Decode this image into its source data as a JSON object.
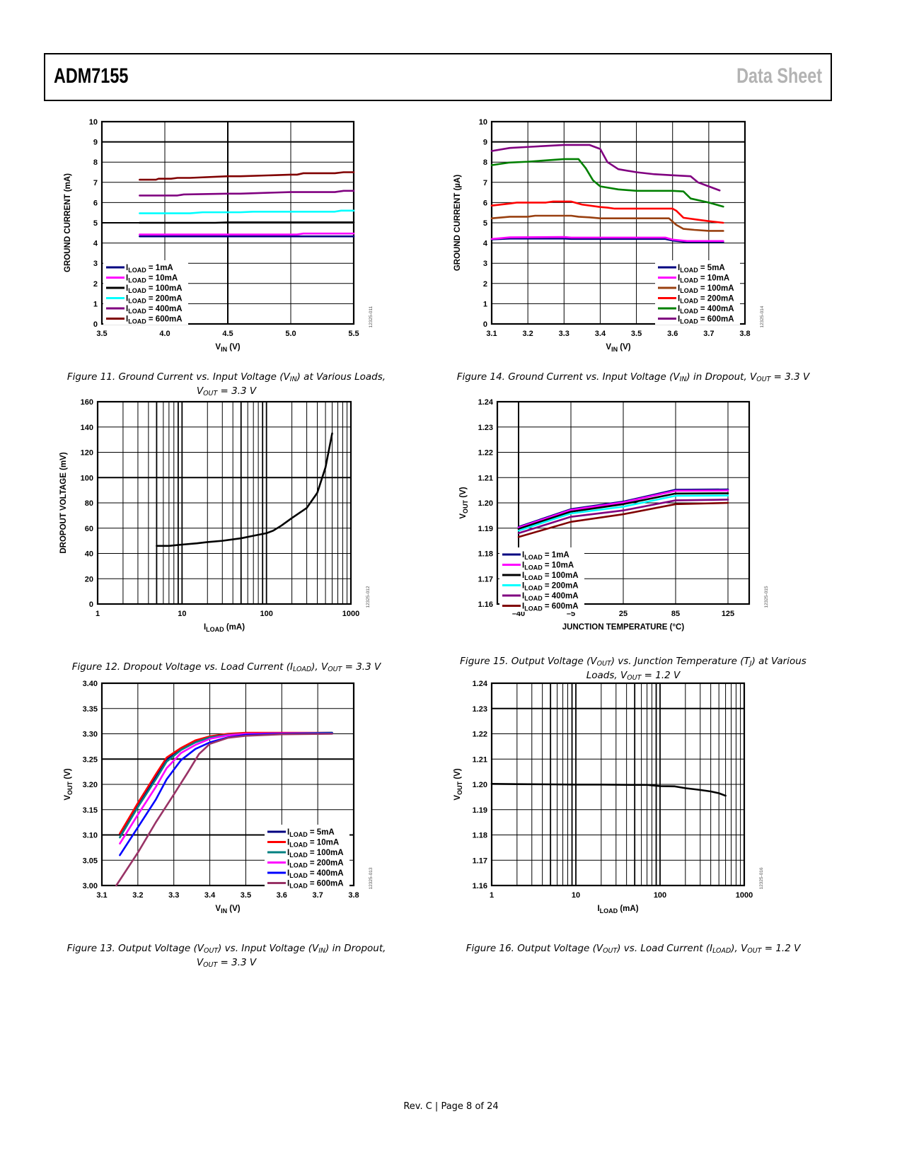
{
  "header": {
    "part_number": "ADM7155",
    "doc_type": "Data Sheet"
  },
  "footer": {
    "text": "Rev. C | Page 8 of 24"
  },
  "chart_data": [
    {
      "id": "fig11",
      "type": "line",
      "xscale": "linear",
      "caption_line1": "Figure 11. Ground Current vs. Input Voltage (V",
      "caption_sub1": "IN",
      "caption_mid1": ") at Various Loads,",
      "caption_line2": "V",
      "caption_sub2": "OUT",
      "caption_end2": " = 3.3 V",
      "xlabel": "V",
      "xlabel_sub": "IN",
      "xlabel_end": " (V)",
      "ylabel": "GROUND CURRENT (mA)",
      "xlim": [
        3.5,
        5.5
      ],
      "ylim": [
        0,
        10
      ],
      "xticks": [
        "3.5",
        "4.0",
        "4.5",
        "5.0",
        "5.5"
      ],
      "yticks": [
        "0",
        "1",
        "2",
        "3",
        "4",
        "5",
        "6",
        "7",
        "8",
        "9",
        "10"
      ],
      "code": "12325-011",
      "legend_position": "bottom-left",
      "series": [
        {
          "name": "I",
          "sub": "LOAD",
          "label": " = 1mA",
          "color": "#000080",
          "x": [
            3.8,
            5.5
          ],
          "y": [
            4.33,
            4.33
          ]
        },
        {
          "name": "I",
          "sub": "LOAD",
          "label": " = 10mA",
          "color": "#ff00ff",
          "x": [
            3.8,
            4.5,
            5.05,
            5.1,
            5.5
          ],
          "y": [
            4.42,
            4.42,
            4.42,
            4.47,
            4.47
          ]
        },
        {
          "name": "I",
          "sub": "LOAD",
          "label": " = 100mA",
          "color": "#000000",
          "x": [
            3.8,
            4.4,
            4.5,
            5.5
          ],
          "y": [
            5.0,
            5.0,
            5.02,
            5.02
          ]
        },
        {
          "name": "I",
          "sub": "LOAD",
          "label": " = 200mA",
          "color": "#00ffff",
          "x": [
            3.8,
            4.2,
            4.3,
            4.6,
            4.7,
            5.35,
            5.4,
            5.5
          ],
          "y": [
            5.47,
            5.47,
            5.52,
            5.52,
            5.55,
            5.55,
            5.6,
            5.6
          ]
        },
        {
          "name": "I",
          "sub": "LOAD",
          "label": " = 400mA",
          "color": "#800080",
          "x": [
            3.8,
            4.1,
            4.15,
            4.5,
            4.6,
            5.0,
            5.35,
            5.42,
            5.5
          ],
          "y": [
            6.35,
            6.35,
            6.4,
            6.44,
            6.44,
            6.52,
            6.52,
            6.58,
            6.58
          ]
        },
        {
          "name": "I",
          "sub": "LOAD",
          "label": " = 600mA",
          "color": "#800000",
          "x": [
            3.8,
            3.93,
            3.95,
            4.05,
            4.1,
            4.2,
            4.5,
            4.6,
            5.0,
            5.05,
            5.1,
            5.35,
            5.42,
            5.5
          ],
          "y": [
            7.13,
            7.13,
            7.18,
            7.18,
            7.22,
            7.22,
            7.3,
            7.3,
            7.38,
            7.38,
            7.45,
            7.45,
            7.5,
            7.5
          ]
        }
      ]
    },
    {
      "id": "fig14",
      "type": "line",
      "xscale": "linear",
      "caption_line1": "Figure 14. Ground Current vs. Input Voltage (V",
      "caption_sub1": "IN",
      "caption_mid1": ") in Dropout, V",
      "caption_sub1b": "OUT",
      "caption_end1": " = 3.3 V",
      "xlabel": "V",
      "xlabel_sub": "IN",
      "xlabel_end": " (V)",
      "ylabel": "GROUND CURRENT (µA)",
      "xlim": [
        3.1,
        3.8
      ],
      "ylim": [
        0,
        10
      ],
      "xticks": [
        "3.1",
        "3.2",
        "3.3",
        "3.4",
        "3.5",
        "3.6",
        "3.7",
        "3.8"
      ],
      "yticks": [
        "0",
        "1",
        "2",
        "3",
        "4",
        "5",
        "6",
        "7",
        "8",
        "9",
        "10"
      ],
      "code": "12325-014",
      "legend_position": "bottom-right",
      "series": [
        {
          "name": "I",
          "sub": "LOAD",
          "label": " = 5mA",
          "color": "#000080",
          "x": [
            3.1,
            3.15,
            3.3,
            3.32,
            3.58,
            3.6,
            3.64,
            3.74
          ],
          "y": [
            4.18,
            4.22,
            4.22,
            4.2,
            4.2,
            4.12,
            4.05,
            4.05
          ]
        },
        {
          "name": "I",
          "sub": "LOAD",
          "label": " = 10mA",
          "color": "#ff00ff",
          "x": [
            3.1,
            3.15,
            3.3,
            3.32,
            3.58,
            3.6,
            3.64,
            3.74
          ],
          "y": [
            4.2,
            4.28,
            4.3,
            4.27,
            4.27,
            4.17,
            4.1,
            4.1
          ]
        },
        {
          "name": "I",
          "sub": "LOAD",
          "label": " = 100mA",
          "color": "#994010",
          "x": [
            3.1,
            3.15,
            3.2,
            3.22,
            3.32,
            3.34,
            3.37,
            3.4,
            3.59,
            3.61,
            3.63,
            3.66,
            3.7,
            3.74
          ],
          "y": [
            5.22,
            5.3,
            5.3,
            5.35,
            5.35,
            5.3,
            5.27,
            5.22,
            5.22,
            4.9,
            4.7,
            4.65,
            4.6,
            4.6
          ]
        },
        {
          "name": "I",
          "sub": "LOAD",
          "label": " = 200mA",
          "color": "#ff0000",
          "x": [
            3.1,
            3.15,
            3.17,
            3.25,
            3.27,
            3.32,
            3.35,
            3.4,
            3.42,
            3.44,
            3.6,
            3.61,
            3.63,
            3.67,
            3.7,
            3.74
          ],
          "y": [
            5.85,
            5.95,
            6.0,
            6.0,
            6.05,
            6.05,
            5.9,
            5.78,
            5.75,
            5.7,
            5.7,
            5.6,
            5.25,
            5.15,
            5.08,
            5.0
          ]
        },
        {
          "name": "I",
          "sub": "LOAD",
          "label": " = 400mA",
          "color": "#008000",
          "x": [
            3.1,
            3.15,
            3.2,
            3.3,
            3.34,
            3.36,
            3.38,
            3.4,
            3.45,
            3.5,
            3.6,
            3.63,
            3.65,
            3.7,
            3.74
          ],
          "y": [
            7.85,
            7.98,
            8.02,
            8.15,
            8.15,
            7.7,
            7.1,
            6.8,
            6.65,
            6.58,
            6.58,
            6.55,
            6.2,
            6.0,
            5.8
          ]
        },
        {
          "name": "I",
          "sub": "LOAD",
          "label": " = 600mA",
          "color": "#800080",
          "x": [
            3.1,
            3.15,
            3.2,
            3.25,
            3.3,
            3.37,
            3.4,
            3.42,
            3.45,
            3.5,
            3.55,
            3.6,
            3.65,
            3.67,
            3.7,
            3.73
          ],
          "y": [
            8.55,
            8.7,
            8.75,
            8.8,
            8.85,
            8.85,
            8.65,
            8.0,
            7.65,
            7.5,
            7.4,
            7.35,
            7.3,
            7.0,
            6.8,
            6.6
          ]
        }
      ]
    },
    {
      "id": "fig12",
      "type": "line",
      "xscale": "log",
      "caption_line1": "Figure 12. Dropout Voltage vs. Load Current (I",
      "caption_sub1": "LOAD",
      "caption_mid1": "), V",
      "caption_sub1b": "OUT",
      "caption_end1": " = 3.3 V",
      "xlabel": "I",
      "xlabel_sub": "LOAD",
      "xlabel_end": " (mA)",
      "ylabel": "DROPOUT VOLTAGE (mV)",
      "xlim": [
        1,
        1000
      ],
      "ylim": [
        0,
        160
      ],
      "xticks": [
        "1",
        "10",
        "100",
        "1000"
      ],
      "yticks": [
        "0",
        "20",
        "40",
        "60",
        "80",
        "100",
        "120",
        "140",
        "160"
      ],
      "code": "12325-012",
      "series": [
        {
          "name": "",
          "sub": "",
          "label": "",
          "color": "#000000",
          "x": [
            5,
            7,
            10,
            15,
            20,
            30,
            50,
            70,
            100,
            120,
            150,
            200,
            300,
            400,
            500,
            600
          ],
          "y": [
            46,
            46,
            47,
            48,
            49,
            50,
            52,
            54,
            56,
            58,
            62,
            68,
            76,
            88,
            108,
            135
          ]
        }
      ]
    },
    {
      "id": "fig15",
      "type": "line",
      "xscale": "category",
      "caption_line1": "Figure 15. Output Voltage (V",
      "caption_sub1": "OUT",
      "caption_mid1": ") vs. Junction Temperature (T",
      "caption_sub1b": "J",
      "caption_end1": ") at Various",
      "caption_line2": "Loads, V",
      "caption_sub2": "OUT",
      "caption_end2": " = 1.2 V",
      "xlabel": "JUNCTION TEMPERATURE (°C)",
      "xlabel_sub": "",
      "xlabel_end": "",
      "ylabel": "V",
      "ylabel_sub": "OUT",
      "ylabel_end": " (V)",
      "xlim": [
        -1.5,
        5.5
      ],
      "ylim": [
        1.16,
        1.24
      ],
      "xticks": [
        "–40",
        "–5",
        "25",
        "85",
        "125"
      ],
      "xtick_positions": [
        0,
        2,
        4,
        6,
        8
      ],
      "yticks": [
        "1.16",
        "1.17",
        "1.18",
        "1.19",
        "1.20",
        "1.21",
        "1.22",
        "1.23",
        "1.24"
      ],
      "code": "12325-015",
      "legend_position": "bottom-left",
      "series": [
        {
          "name": "I",
          "sub": "LOAD",
          "label": " = 1mA",
          "color": "#000080",
          "x": [
            "–40",
            "–5",
            "25",
            "85",
            "125"
          ],
          "y": [
            1.1905,
            1.1975,
            1.2005,
            1.2052,
            1.2053
          ]
        },
        {
          "name": "I",
          "sub": "LOAD",
          "label": " = 10mA",
          "color": "#ff00ff",
          "x": [
            "–40",
            "–5",
            "25",
            "85",
            "125"
          ],
          "y": [
            1.1902,
            1.1972,
            1.2002,
            1.2048,
            1.2049
          ]
        },
        {
          "name": "I",
          "sub": "LOAD",
          "label": " = 100mA",
          "color": "#000000",
          "x": [
            "–40",
            "–5",
            "25",
            "85",
            "125"
          ],
          "y": [
            1.1897,
            1.1965,
            1.1995,
            1.2037,
            1.2038
          ]
        },
        {
          "name": "I",
          "sub": "LOAD",
          "label": " = 200mA",
          "color": "#00ffff",
          "x": [
            "–40",
            "–5",
            "25",
            "85",
            "125"
          ],
          "y": [
            1.189,
            1.1958,
            1.1985,
            1.2028,
            1.2029
          ]
        },
        {
          "name": "I",
          "sub": "LOAD",
          "label": " = 400mA",
          "color": "#800080",
          "x": [
            "–40",
            "–5",
            "25",
            "85",
            "125"
          ],
          "y": [
            1.188,
            1.1945,
            1.197,
            1.201,
            1.2013
          ]
        },
        {
          "name": "I",
          "sub": "LOAD",
          "label": " = 600mA",
          "color": "#800000",
          "x": [
            "–40",
            "–5",
            "25",
            "85",
            "125"
          ],
          "y": [
            1.1865,
            1.1925,
            1.1955,
            1.1995,
            1.2
          ]
        }
      ]
    },
    {
      "id": "fig13",
      "type": "line",
      "xscale": "linear",
      "caption_line1": "Figure 13. Output Voltage (V",
      "caption_sub1": "OUT",
      "caption_mid1": ") vs. Input Voltage (V",
      "caption_sub1b": "IN",
      "caption_end1": ") in Dropout,",
      "caption_line2": "V",
      "caption_sub2": "OUT",
      "caption_end2": " = 3.3 V",
      "xlabel": "V",
      "xlabel_sub": "IN",
      "xlabel_end": " (V)",
      "ylabel": "V",
      "ylabel_sub": "OUT",
      "ylabel_end": " (V)",
      "xlim": [
        3.1,
        3.8
      ],
      "ylim": [
        3.0,
        3.4
      ],
      "xticks": [
        "3.1",
        "3.2",
        "3.3",
        "3.4",
        "3.5",
        "3.6",
        "3.7",
        "3.8"
      ],
      "yticks": [
        "3.00",
        "3.05",
        "3.10",
        "3.15",
        "3.20",
        "3.25",
        "3.30",
        "3.35",
        "3.40"
      ],
      "code": "12325-013",
      "legend_position": "bottom-right",
      "series": [
        {
          "name": "I",
          "sub": "LOAD",
          "label": " = 5mA",
          "color": "#000080",
          "x": [
            3.15,
            3.2,
            3.25,
            3.28,
            3.32,
            3.36,
            3.4,
            3.45,
            3.5,
            3.6,
            3.74
          ],
          "y": [
            3.102,
            3.16,
            3.215,
            3.25,
            3.27,
            3.285,
            3.293,
            3.298,
            3.3,
            3.301,
            3.302
          ]
        },
        {
          "name": "I",
          "sub": "LOAD",
          "label": " = 10mA",
          "color": "#ff0000",
          "x": [
            3.15,
            3.2,
            3.25,
            3.28,
            3.32,
            3.36,
            3.4,
            3.45,
            3.5,
            3.6,
            3.74
          ],
          "y": [
            3.103,
            3.163,
            3.22,
            3.253,
            3.272,
            3.287,
            3.295,
            3.3,
            3.302,
            3.302,
            3.302
          ]
        },
        {
          "name": "I",
          "sub": "LOAD",
          "label": " = 100mA",
          "color": "#008080",
          "x": [
            3.15,
            3.2,
            3.25,
            3.28,
            3.32,
            3.36,
            3.4,
            3.45,
            3.5,
            3.6,
            3.74
          ],
          "y": [
            3.095,
            3.155,
            3.21,
            3.245,
            3.268,
            3.283,
            3.293,
            3.298,
            3.3,
            3.301,
            3.302
          ]
        },
        {
          "name": "I",
          "sub": "LOAD",
          "label": " = 200mA",
          "color": "#ff00ff",
          "x": [
            3.15,
            3.2,
            3.25,
            3.28,
            3.32,
            3.36,
            3.4,
            3.45,
            3.5,
            3.6,
            3.74
          ],
          "y": [
            3.083,
            3.14,
            3.195,
            3.232,
            3.262,
            3.278,
            3.29,
            3.297,
            3.3,
            3.301,
            3.301
          ]
        },
        {
          "name": "I",
          "sub": "LOAD",
          "label": " = 400mA",
          "color": "#0000ff",
          "x": [
            3.15,
            3.2,
            3.25,
            3.28,
            3.32,
            3.36,
            3.4,
            3.45,
            3.5,
            3.6,
            3.74
          ],
          "y": [
            3.06,
            3.115,
            3.17,
            3.21,
            3.248,
            3.27,
            3.283,
            3.293,
            3.298,
            3.3,
            3.301
          ]
        },
        {
          "name": "I",
          "sub": "LOAD",
          "label": " = 600mA",
          "color": "#993366",
          "x": [
            3.14,
            3.2,
            3.25,
            3.3,
            3.34,
            3.37,
            3.4,
            3.45,
            3.5,
            3.6,
            3.74
          ],
          "y": [
            3.0,
            3.065,
            3.125,
            3.18,
            3.225,
            3.26,
            3.28,
            3.292,
            3.296,
            3.299,
            3.3
          ]
        }
      ]
    },
    {
      "id": "fig16",
      "type": "line",
      "xscale": "log",
      "caption_line1": "Figure 16. Output Voltage (V",
      "caption_sub1": "OUT",
      "caption_mid1": ") vs. Load Current (I",
      "caption_sub1b": "LOAD",
      "caption_end1": "), V",
      "caption_sub1c": "OUT",
      "caption_end1c": " = 1.2 V",
      "xlabel": "I",
      "xlabel_sub": "LOAD",
      "xlabel_end": " (mA)",
      "ylabel": "V",
      "ylabel_sub": "OUT",
      "ylabel_end": " (V)",
      "xlim": [
        1,
        1000
      ],
      "ylim": [
        1.16,
        1.24
      ],
      "xticks": [
        "1",
        "10",
        "100",
        "1000"
      ],
      "yticks": [
        "1.16",
        "1.17",
        "1.18",
        "1.19",
        "1.20",
        "1.21",
        "1.22",
        "1.23",
        "1.24"
      ],
      "code": "12325-016",
      "series": [
        {
          "name": "",
          "sub": "",
          "label": "",
          "color": "#000000",
          "x": [
            1,
            2,
            5,
            10,
            20,
            50,
            70,
            100,
            150,
            200,
            300,
            400,
            500,
            600
          ],
          "y": [
            1.2002,
            1.2001,
            1.2,
            1.1999,
            1.1999,
            1.1998,
            1.1998,
            1.1993,
            1.1992,
            1.1985,
            1.1978,
            1.1972,
            1.1965,
            1.1955
          ]
        }
      ]
    }
  ]
}
